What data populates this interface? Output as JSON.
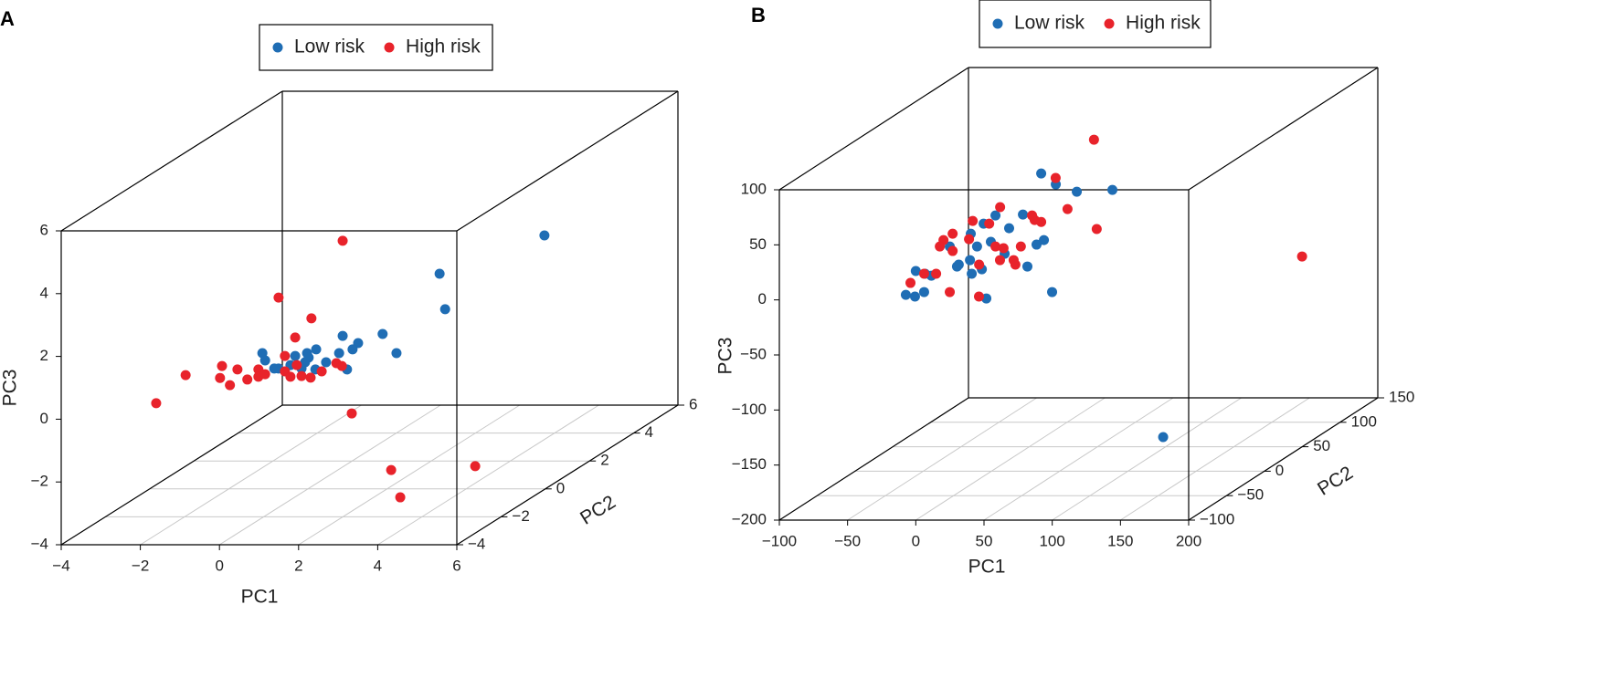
{
  "chart_data": [
    {
      "type": "scatter3d",
      "panel": "A",
      "xlabel": "PC1",
      "ylabel": "PC2",
      "zlabel": "PC3",
      "xlim": [
        -4,
        6
      ],
      "ylim": [
        -4,
        6
      ],
      "zlim": [
        -4,
        6
      ],
      "xticks": [
        {
          "value": -4,
          "label": "−4"
        },
        {
          "value": -2,
          "label": "−2"
        },
        0,
        2,
        4,
        6
      ],
      "yticks": [
        {
          "value": -4,
          "label": "−4"
        },
        {
          "value": -2,
          "label": "−2"
        },
        0,
        2,
        4,
        6
      ],
      "zticks": [
        {
          "value": -4,
          "label": "−4"
        },
        {
          "value": -2,
          "label": "−2"
        },
        0,
        2,
        4,
        6
      ],
      "grid": true,
      "series": [
        {
          "name": "Low risk",
          "color": "#1f6db4",
          "x": [
            5.42,
            2.77,
            2.91,
            1.33,
            1.68,
            0.32,
            0.71,
            0.57,
            0.23,
            0.43,
            -0.35,
            -0.63,
            -0.1,
            -1.0,
            -1.3,
            -1.71,
            -1.64,
            -1.41,
            -0.58,
            -0.72,
            -0.37,
            -0.88,
            -0.54
          ],
          "y": [
            1,
            1,
            1,
            1,
            1,
            1,
            1,
            1,
            1,
            1,
            1,
            1,
            1,
            1,
            1,
            1,
            1,
            1,
            1,
            1,
            1,
            1,
            1
          ],
          "z": [
            3.63,
            2.41,
            1.28,
            0.49,
            -0.12,
            0.43,
            0.2,
            0.0,
            -0.12,
            -0.64,
            0.0,
            -0.41,
            -0.41,
            -0.5,
            -0.61,
            -0.12,
            -0.35,
            -0.61,
            -0.12,
            -0.61,
            -0.64,
            -0.21,
            -0.26
          ]
        },
        {
          "name": "High risk",
          "color": "#e8232b",
          "x": [
            0.32,
            -1.3,
            -0.47,
            -0.88,
            -1.6,
            -3.65,
            -2.73,
            -2.78,
            -2.53,
            -2.34,
            -2.09,
            -1.81,
            -1.81,
            -1.64,
            -1.14,
            -1.14,
            -0.84,
            -0.72,
            -1.0,
            -0.49,
            -0.21,
            0.16,
            0.3,
            0.55,
            4.34,
            4.57,
            3.67
          ],
          "y": [
            1,
            1,
            1,
            1,
            -4,
            1,
            1,
            1,
            1,
            1,
            1,
            1,
            1,
            1,
            1,
            1,
            1,
            1,
            1,
            1,
            1,
            1,
            1,
            1,
            -4,
            -4,
            1
          ],
          "z": [
            3.46,
            1.65,
            0.99,
            0.38,
            0.51,
            -0.82,
            -0.53,
            -0.91,
            -1.14,
            -0.64,
            -0.96,
            -0.64,
            -0.87,
            -0.79,
            -0.21,
            -0.7,
            -0.5,
            -0.85,
            -0.87,
            -0.9,
            -0.7,
            -0.44,
            -0.53,
            -2.04,
            -1.62,
            -2.49,
            -3.72
          ]
        }
      ]
    },
    {
      "type": "scatter3d",
      "panel": "B",
      "xlabel": "PC1",
      "ylabel": "PC2",
      "zlabel": "PC3",
      "xlim": [
        -100,
        200
      ],
      "ylim": [
        -100,
        150
      ],
      "zlim": [
        -200,
        100
      ],
      "xticks": [
        {
          "value": -100,
          "label": "−100"
        },
        {
          "value": -50,
          "label": "−50"
        },
        0,
        50,
        100,
        150,
        200
      ],
      "yticks": [
        {
          "value": -100,
          "label": "−100"
        },
        {
          "value": -50,
          "label": "−50"
        },
        0,
        50,
        100,
        150
      ],
      "zticks": [
        {
          "value": -200,
          "label": "−200"
        },
        {
          "value": -150,
          "label": "−150"
        },
        {
          "value": -100,
          "label": "−100"
        },
        {
          "value": -50,
          "label": "−50"
        },
        0,
        50,
        100
      ],
      "grid": true,
      "series": [
        {
          "name": "Low risk",
          "color": "#1f6db4",
          "x": [
            22.6,
            33.3,
            48.7,
            74.8,
            181.3,
            30.6,
            -76.6,
            -69.9,
            -63.2,
            -57.9,
            -69.3,
            -37.8,
            -44.4,
            -29.0,
            -19.6,
            -10.9,
            -0.9,
            9.2,
            19.2,
            24.6,
            12.5,
            -20.9,
            -29.6,
            -28.3,
            -17.6,
            -4.2,
            -39.1,
            -24.4,
            -62.5,
            -14.3
          ],
          "y": [
            25,
            25,
            25,
            25,
            -100,
            25,
            25,
            25,
            25,
            25,
            25,
            25,
            25,
            25,
            25,
            25,
            25,
            25,
            25,
            25,
            25,
            25,
            25,
            25,
            25,
            25,
            25,
            25,
            25,
            25
          ],
          "z": [
            59.3,
            49.4,
            42.7,
            44.4,
            -124.6,
            -48.4,
            -50.9,
            -52.5,
            -48.4,
            -33.5,
            -29.3,
            -23.5,
            -7.0,
            4.6,
            13.7,
            21.2,
            9.6,
            22.0,
            -5.3,
            -1.2,
            -25.2,
            -27.7,
            -19.4,
            -31.8,
            -54.2,
            -13.6,
            -25.2,
            -7.0,
            -31.8,
            -2.8
          ]
        },
        {
          "name": "High risk",
          "color": "#e8232b",
          "x": [
            61.3,
            33.2,
            41.9,
            63.3,
            144.5,
            -7.5,
            -15.5,
            -27.6,
            -42.3,
            -49.0,
            -51.7,
            -30.3,
            -42.3,
            -63.2,
            -73.2,
            -54.4,
            -44.4,
            -23.0,
            -10.9,
            -5.0,
            2.4,
            3.7,
            7.7,
            17.8,
            22.6,
            15.9,
            -7.6,
            -22.9
          ],
          "y": [
            25,
            25,
            25,
            25,
            150,
            25,
            25,
            25,
            25,
            25,
            25,
            25,
            25,
            25,
            25,
            25,
            25,
            25,
            25,
            25,
            25,
            25,
            25,
            25,
            25,
            25,
            25,
            25
          ],
          "z": [
            90.0,
            55.2,
            27.0,
            8.8,
            -71.6,
            28.7,
            13.7,
            16.2,
            4.6,
            -1.2,
            -7.0,
            -0.4,
            -11.1,
            -31.8,
            -40.1,
            -31.8,
            -48.4,
            -52.5,
            -7.0,
            -8.6,
            -19.4,
            -23.5,
            -7.0,
            17.0,
            15.3,
            21.2,
            -19.4,
            -23.5
          ]
        }
      ]
    }
  ]
}
